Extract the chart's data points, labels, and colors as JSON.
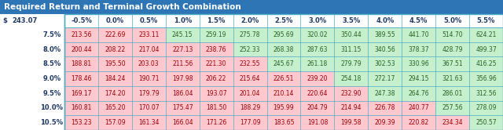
{
  "title": "Required Return and Terminal Growth Combination",
  "title_bg": "#2E75B6",
  "title_fg": "#FFFFFF",
  "corner_label": "$",
  "corner_value": "243.07",
  "col_headers": [
    "-0.5%",
    "0.0%",
    "0.5%",
    "1.0%",
    "1.5%",
    "2.0%",
    "2.5%",
    "3.0%",
    "3.5%",
    "4.0%",
    "4.5%",
    "5.0%",
    "5.5%"
  ],
  "row_headers": [
    "7.5%",
    "8.0%",
    "8.5%",
    "9.0%",
    "9.5%",
    "10.0%",
    "10.5%"
  ],
  "values": [
    [
      213.56,
      222.69,
      233.11,
      245.15,
      259.19,
      275.78,
      295.69,
      320.02,
      350.44,
      389.55,
      441.7,
      514.7,
      624.21
    ],
    [
      200.44,
      208.22,
      217.04,
      227.13,
      238.76,
      252.33,
      268.38,
      287.63,
      311.15,
      340.56,
      378.37,
      428.79,
      499.37
    ],
    [
      188.81,
      195.5,
      203.03,
      211.56,
      221.3,
      232.55,
      245.67,
      261.18,
      279.79,
      302.53,
      330.96,
      367.51,
      416.25
    ],
    [
      178.46,
      184.24,
      190.71,
      197.98,
      206.22,
      215.64,
      226.51,
      239.2,
      254.18,
      272.17,
      294.15,
      321.63,
      356.96
    ],
    [
      169.17,
      174.2,
      179.79,
      186.04,
      193.07,
      201.04,
      210.14,
      220.64,
      232.9,
      247.38,
      264.76,
      286.01,
      312.56
    ],
    [
      160.81,
      165.2,
      170.07,
      175.47,
      181.5,
      188.29,
      195.99,
      204.79,
      214.94,
      226.78,
      240.77,
      257.56,
      278.09
    ],
    [
      153.23,
      157.09,
      161.34,
      166.04,
      171.26,
      177.09,
      183.65,
      191.08,
      199.58,
      209.39,
      220.82,
      234.34,
      250.57
    ]
  ],
  "highlight_value": 243.07,
  "color_green": "#C6EFCE",
  "color_red": "#FFC7CE",
  "color_green_text": "#276221",
  "color_red_text": "#9C0006",
  "table_border": "#4BACC6",
  "col_header_color": "#1F3864",
  "row_header_color": "#1F3864",
  "title_fontsize": 7.5,
  "header_fontsize": 6.0,
  "cell_fontsize": 5.5
}
